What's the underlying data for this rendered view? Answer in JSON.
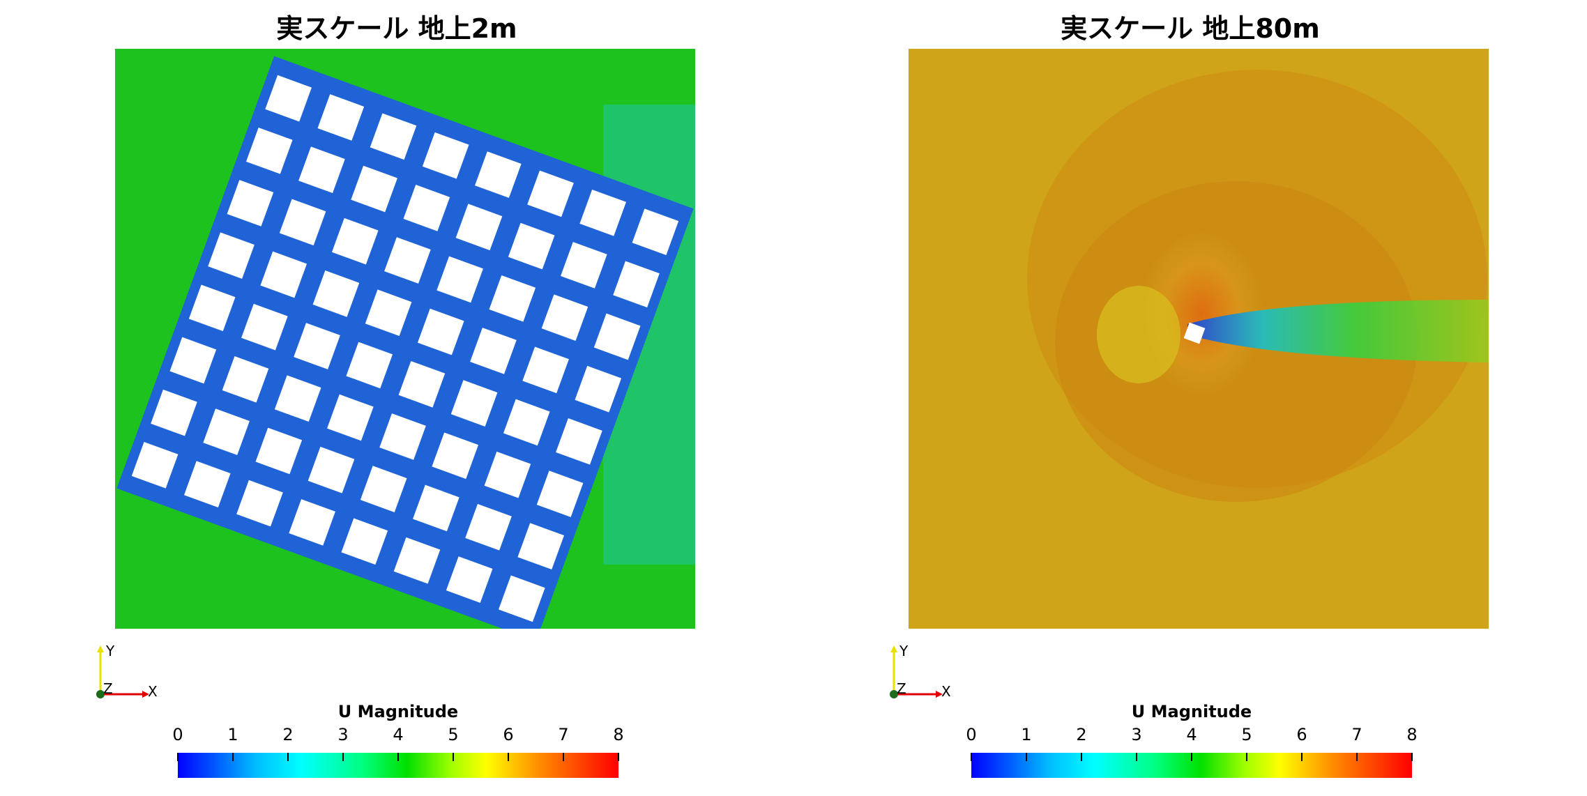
{
  "panels": [
    {
      "title": "実スケール 地上2m",
      "axes": {
        "y": "Y",
        "z": "Z",
        "x": "X"
      },
      "legend": {
        "title": "U Magnitude",
        "ticks": [
          "0",
          "1",
          "2",
          "3",
          "4",
          "5",
          "6",
          "7",
          "8"
        ]
      }
    },
    {
      "title": "実スケール 地上80m",
      "axes": {
        "y": "Y",
        "z": "Z",
        "x": "X"
      },
      "legend": {
        "title": "U Magnitude",
        "ticks": [
          "0",
          "1",
          "2",
          "3",
          "4",
          "5",
          "6",
          "7",
          "8"
        ]
      }
    }
  ],
  "colors": {
    "ground_level_background": "#1ec21e",
    "elevated_background": "#d7b014",
    "building_fill": "#ffffff"
  }
}
